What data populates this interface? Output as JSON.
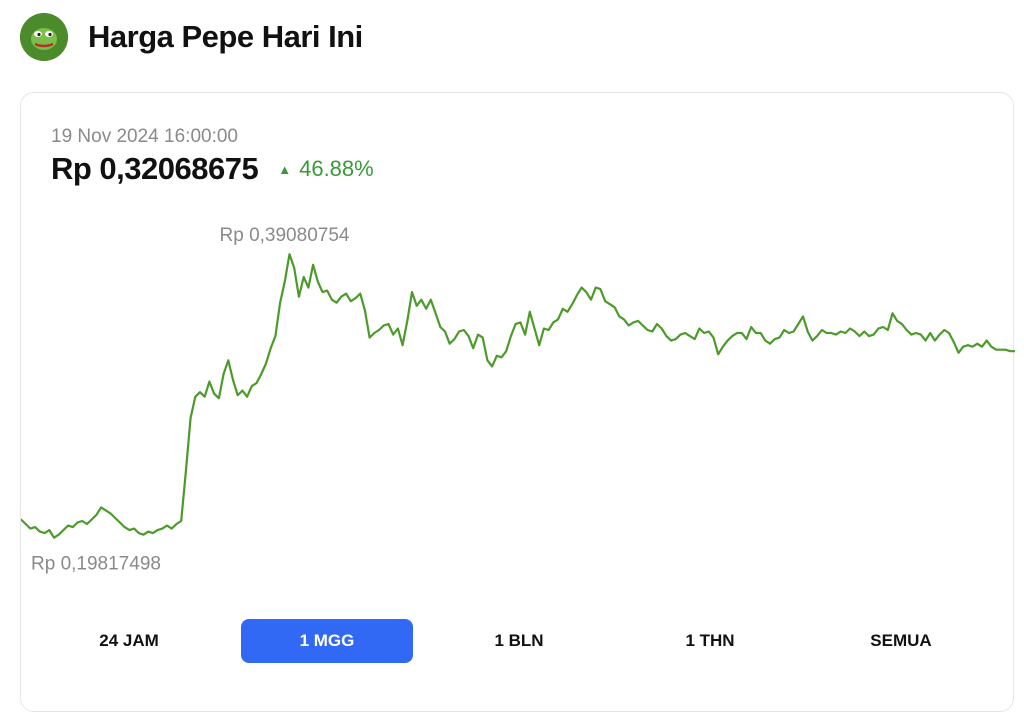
{
  "header": {
    "title": "Harga Pepe Hari Ini",
    "logo_icon": "pepe-frog-icon"
  },
  "price_panel": {
    "timestamp": "19 Nov 2024 16:00:00",
    "price": "Rp 0,32068675",
    "change": "46.88%",
    "change_direction": "up",
    "change_color": "#3a9a3a"
  },
  "chart_data": {
    "type": "line",
    "title": "",
    "xlabel": "",
    "ylabel": "",
    "line_color": "#4c9a2a",
    "grid": false,
    "max_label": "Rp 0,39080754",
    "min_label": "Rp 0,19817498",
    "ylim": [
      0.19817498,
      0.39080754
    ],
    "values": [
      0.215,
      0.212,
      0.209,
      0.21,
      0.207,
      0.206,
      0.208,
      0.203,
      0.205,
      0.208,
      0.211,
      0.21,
      0.213,
      0.214,
      0.212,
      0.215,
      0.218,
      0.223,
      0.221,
      0.219,
      0.216,
      0.213,
      0.21,
      0.208,
      0.209,
      0.206,
      0.205,
      0.207,
      0.206,
      0.208,
      0.209,
      0.211,
      0.209,
      0.212,
      0.214,
      0.247,
      0.282,
      0.296,
      0.299,
      0.296,
      0.306,
      0.298,
      0.295,
      0.311,
      0.32,
      0.307,
      0.297,
      0.3,
      0.296,
      0.303,
      0.305,
      0.311,
      0.318,
      0.328,
      0.336,
      0.358,
      0.372,
      0.39,
      0.381,
      0.362,
      0.375,
      0.368,
      0.383,
      0.372,
      0.365,
      0.366,
      0.36,
      0.358,
      0.362,
      0.364,
      0.359,
      0.361,
      0.364,
      0.353,
      0.335,
      0.338,
      0.34,
      0.343,
      0.344,
      0.337,
      0.341,
      0.33,
      0.346,
      0.365,
      0.356,
      0.36,
      0.354,
      0.36,
      0.351,
      0.342,
      0.339,
      0.331,
      0.334,
      0.339,
      0.34,
      0.336,
      0.328,
      0.337,
      0.335,
      0.32,
      0.316,
      0.323,
      0.322,
      0.326,
      0.336,
      0.344,
      0.345,
      0.337,
      0.352,
      0.341,
      0.33,
      0.341,
      0.34,
      0.345,
      0.347,
      0.354,
      0.352,
      0.357,
      0.363,
      0.368,
      0.365,
      0.36,
      0.368,
      0.367,
      0.359,
      0.357,
      0.355,
      0.349,
      0.347,
      0.343,
      0.345,
      0.346,
      0.343,
      0.34,
      0.339,
      0.344,
      0.341,
      0.336,
      0.333,
      0.334,
      0.337,
      0.338,
      0.336,
      0.334,
      0.341,
      0.338,
      0.339,
      0.335,
      0.324,
      0.329,
      0.333,
      0.336,
      0.338,
      0.338,
      0.334,
      0.342,
      0.338,
      0.338,
      0.333,
      0.331,
      0.334,
      0.335,
      0.34,
      0.338,
      0.339,
      0.344,
      0.349,
      0.339,
      0.333,
      0.336,
      0.34,
      0.338,
      0.338,
      0.337,
      0.339,
      0.338,
      0.341,
      0.339,
      0.336,
      0.339,
      0.336,
      0.337,
      0.341,
      0.342,
      0.34,
      0.351,
      0.346,
      0.344,
      0.34,
      0.337,
      0.338,
      0.337,
      0.333,
      0.338,
      0.333,
      0.337,
      0.34,
      0.338,
      0.332,
      0.325,
      0.329,
      0.33,
      0.329,
      0.331,
      0.329,
      0.333,
      0.329,
      0.327,
      0.327,
      0.327,
      0.326,
      0.326
    ]
  },
  "timeframes": {
    "tabs": [
      {
        "label": "24 JAM"
      },
      {
        "label": "1 MGG"
      },
      {
        "label": "1 BLN"
      },
      {
        "label": "1 THN"
      },
      {
        "label": "SEMUA"
      }
    ],
    "active_index": 1,
    "active_color": "#3169f5"
  }
}
